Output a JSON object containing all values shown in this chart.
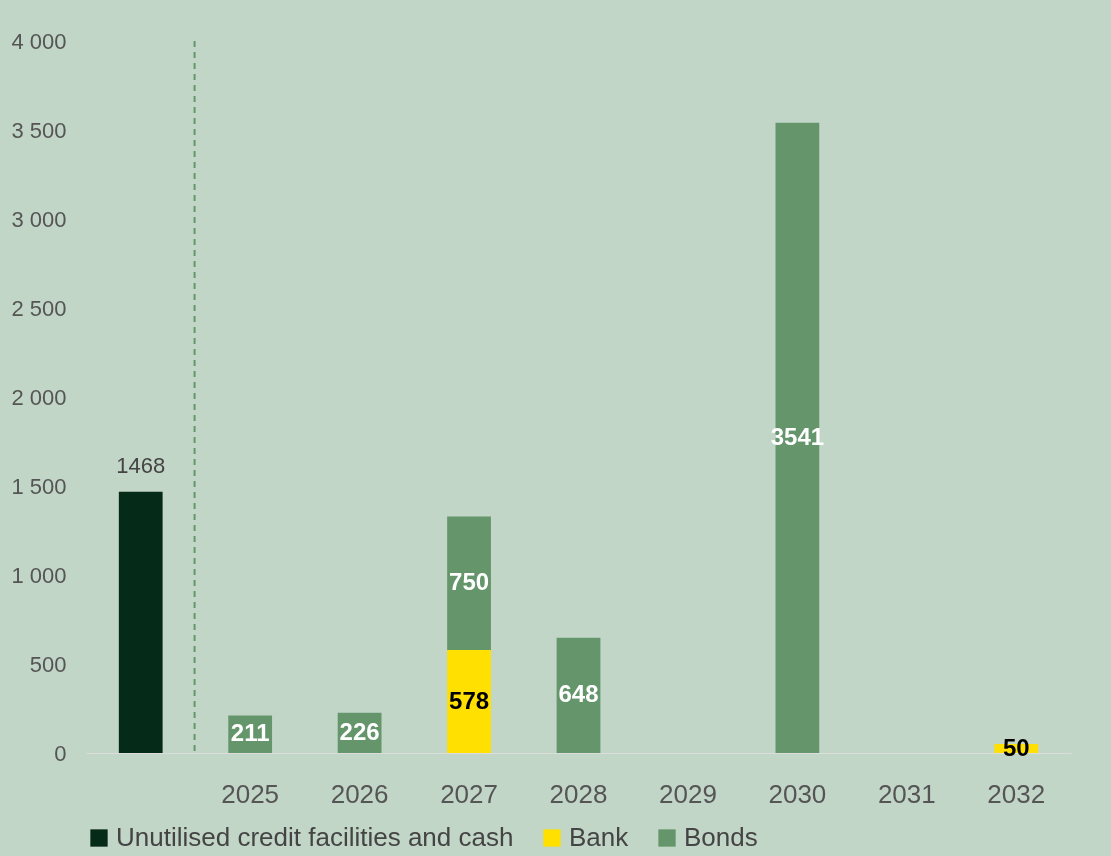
{
  "chart_data": {
    "type": "bar",
    "stacked": true,
    "data_labels": true,
    "legend": "bottom",
    "grid": false,
    "categories": [
      null,
      "2025",
      "2026",
      "2027",
      "2028",
      "2029",
      "2030",
      "2031",
      "2032"
    ],
    "series": [
      {
        "name": "Unutilised credit facilities and cash",
        "color": "#062a18",
        "values": [
          1468,
          null,
          null,
          null,
          null,
          null,
          null,
          null,
          null
        ]
      },
      {
        "name": "Bank",
        "color": "#ffe000",
        "values": [
          null,
          null,
          null,
          578,
          null,
          null,
          null,
          null,
          50
        ]
      },
      {
        "name": "Bonds",
        "color": "#64956b",
        "values": [
          null,
          211,
          226,
          750,
          648,
          null,
          3541,
          null,
          null
        ]
      }
    ],
    "ylim": [
      0,
      4000
    ],
    "yticks": [
      0,
      500,
      {
        "value": 1000,
        "label": "1 000"
      },
      {
        "value": 1500,
        "label": "1 500"
      },
      {
        "value": 2000,
        "label": "2 000"
      },
      {
        "value": 2500,
        "label": "2 500"
      },
      {
        "value": 3000,
        "label": "3 000"
      },
      {
        "value": 3500,
        "label": "3 500"
      },
      {
        "value": 4000,
        "label": "4 000"
      }
    ],
    "ref_lines": [
      {
        "axis": "x",
        "value": "2025",
        "line_style": "dashed",
        "color": "#64956b"
      }
    ]
  }
}
